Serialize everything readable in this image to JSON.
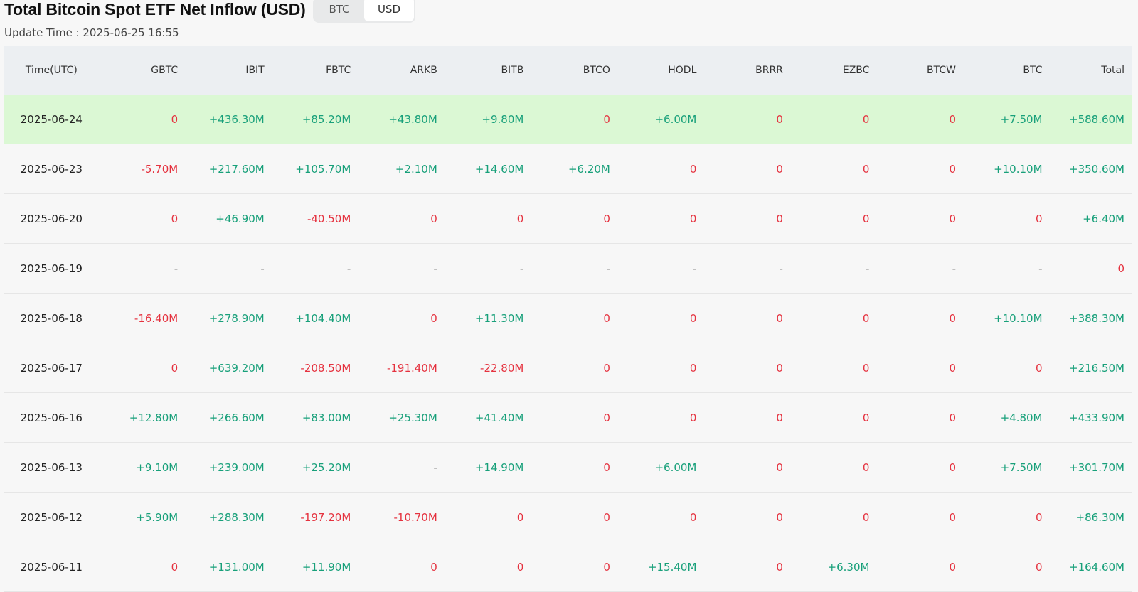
{
  "header": {
    "title": "Total Bitcoin Spot ETF Net Inflow (USD)",
    "toggle": [
      {
        "label": "BTC",
        "active": false
      },
      {
        "label": "USD",
        "active": true
      }
    ],
    "update_time": "Update Time : 2025-06-25 16:55"
  },
  "colors": {
    "positive": "#18a07a",
    "negative": "#e5323f",
    "highlight_row": "#dbf8d4",
    "header_bg": "#eceff2"
  },
  "table": {
    "columns": [
      "Time(UTC)",
      "GBTC",
      "IBIT",
      "FBTC",
      "ARKB",
      "BITB",
      "BTCO",
      "HODL",
      "BRRR",
      "EZBC",
      "BTCW",
      "BTC",
      "Total"
    ],
    "rows": [
      [
        "2025-06-24",
        "0",
        "+436.30M",
        "+85.20M",
        "+43.80M",
        "+9.80M",
        "0",
        "+6.00M",
        "0",
        "0",
        "0",
        "+7.50M",
        "+588.60M"
      ],
      [
        "2025-06-23",
        "-5.70M",
        "+217.60M",
        "+105.70M",
        "+2.10M",
        "+14.60M",
        "+6.20M",
        "0",
        "0",
        "0",
        "0",
        "+10.10M",
        "+350.60M"
      ],
      [
        "2025-06-20",
        "0",
        "+46.90M",
        "-40.50M",
        "0",
        "0",
        "0",
        "0",
        "0",
        "0",
        "0",
        "0",
        "+6.40M"
      ],
      [
        "2025-06-19",
        "-",
        "-",
        "-",
        "-",
        "-",
        "-",
        "-",
        "-",
        "-",
        "-",
        "-",
        "0"
      ],
      [
        "2025-06-18",
        "-16.40M",
        "+278.90M",
        "+104.40M",
        "0",
        "+11.30M",
        "0",
        "0",
        "0",
        "0",
        "0",
        "+10.10M",
        "+388.30M"
      ],
      [
        "2025-06-17",
        "0",
        "+639.20M",
        "-208.50M",
        "-191.40M",
        "-22.80M",
        "0",
        "0",
        "0",
        "0",
        "0",
        "0",
        "+216.50M"
      ],
      [
        "2025-06-16",
        "+12.80M",
        "+266.60M",
        "+83.00M",
        "+25.30M",
        "+41.40M",
        "0",
        "0",
        "0",
        "0",
        "0",
        "+4.80M",
        "+433.90M"
      ],
      [
        "2025-06-13",
        "+9.10M",
        "+239.00M",
        "+25.20M",
        "-",
        "+14.90M",
        "0",
        "+6.00M",
        "0",
        "0",
        "0",
        "+7.50M",
        "+301.70M"
      ],
      [
        "2025-06-12",
        "+5.90M",
        "+288.30M",
        "-197.20M",
        "-10.70M",
        "0",
        "0",
        "0",
        "0",
        "0",
        "0",
        "0",
        "+86.30M"
      ],
      [
        "2025-06-11",
        "0",
        "+131.00M",
        "+11.90M",
        "0",
        "0",
        "0",
        "+15.40M",
        "0",
        "+6.30M",
        "0",
        "0",
        "+164.60M"
      ]
    ],
    "highlighted_row_index": 0
  }
}
